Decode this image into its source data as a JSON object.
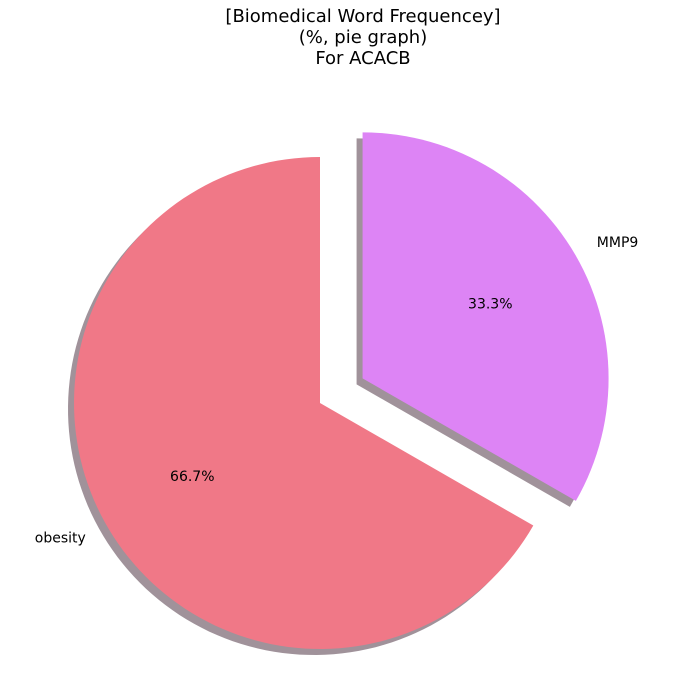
{
  "chart_data": {
    "type": "pie",
    "title_lines": [
      "[Biomedical Word Frequencey]",
      "(%, pie graph)",
      "For ACACB"
    ],
    "slices": [
      {
        "label": "obesity",
        "value": 66.7,
        "pct_label": "66.7%",
        "color": "#f07887",
        "exploded": false
      },
      {
        "label": "MMP9",
        "value": 33.3,
        "pct_label": "33.3%",
        "color": "#dd84f5",
        "exploded": true
      }
    ],
    "start_angle_deg": 90,
    "direction": "counterclockwise",
    "shadow": true,
    "shadow_color": "#a0929a",
    "legend": "none"
  }
}
